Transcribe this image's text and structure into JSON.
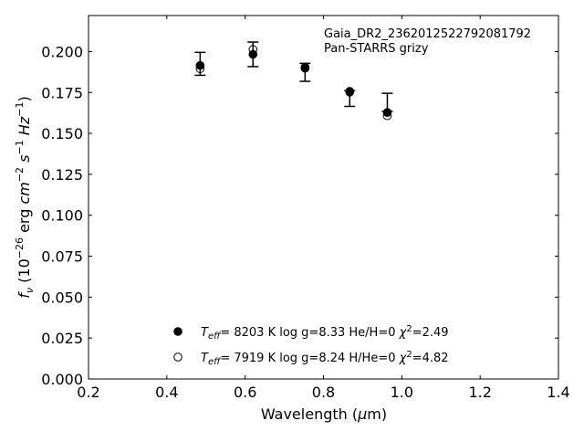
{
  "chart_data": {
    "type": "scatter",
    "annotation": [
      "Gaia_DR2_2362012522792081792",
      "Pan-STARRS grizy"
    ],
    "xlabel": "Wavelength (μm)",
    "ylabel": "f_ν (10^-26 erg cm^-2 s^-1 Hz^-1)",
    "xlim": [
      0.2,
      1.4
    ],
    "ylim": [
      0.0,
      0.222
    ],
    "xticks": [
      "0.2",
      "0.4",
      "0.6",
      "0.8",
      "1.0",
      "1.2",
      "1.4"
    ],
    "yticks": [
      "0.000",
      "0.025",
      "0.050",
      "0.075",
      "0.100",
      "0.125",
      "0.150",
      "0.175",
      "0.200"
    ],
    "grid": false,
    "legend_position": "bottom-center",
    "series": [
      {
        "name": "T_eff=  8203 K  log g=8.33  He/H=0  χ²=2.49",
        "marker": "filled-circle",
        "x": [
          0.485,
          0.62,
          0.753,
          0.867,
          0.963
        ],
        "y": [
          0.1915,
          0.1983,
          0.1898,
          0.1757,
          0.1628
        ]
      },
      {
        "name": "T_eff=  7919 K  log g=8.24  H/He=0  χ²=4.82",
        "marker": "open-circle",
        "x": [
          0.485,
          0.62,
          0.753,
          0.867,
          0.963
        ],
        "y": [
          0.1895,
          0.2013,
          0.1905,
          0.1752,
          0.1608
        ]
      }
    ],
    "observed": {
      "marker": "errorbar",
      "x": [
        0.485,
        0.62,
        0.753,
        0.867,
        0.963
      ],
      "y": [
        0.1925,
        0.1983,
        0.1873,
        0.1713,
        0.169
      ],
      "yerr": [
        0.007,
        0.0075,
        0.0055,
        0.0048,
        0.0055
      ]
    }
  }
}
